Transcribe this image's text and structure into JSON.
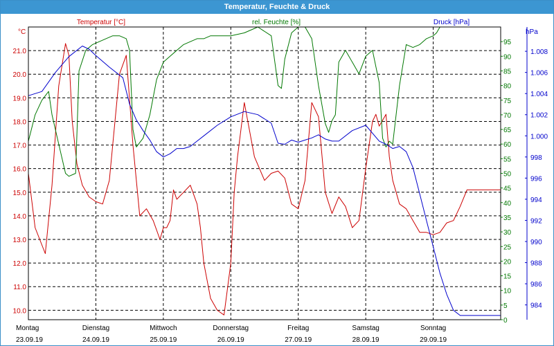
{
  "window": {
    "title": "Temperatur, Feuchte & Druck"
  },
  "colors": {
    "temperature": "#cc0000",
    "humidity": "#007700",
    "pressure": "#0000cc",
    "titlebar": "#3c96d2",
    "grid": "#000000"
  },
  "chart_data": {
    "type": "line",
    "title": "Temperatur, Feuchte & Druck",
    "grid": true,
    "x_days": [
      {
        "day": "Montag",
        "date": "23.09.19"
      },
      {
        "day": "Dienstag",
        "date": "24.09.19"
      },
      {
        "day": "Mittwoch",
        "date": "25.09.19"
      },
      {
        "day": "Donnerstag",
        "date": "26.09.19"
      },
      {
        "day": "Freitag",
        "date": "27.09.19"
      },
      {
        "day": "Samstag",
        "date": "28.09.19"
      },
      {
        "day": "Sonntag",
        "date": "29.09.19"
      }
    ],
    "x_range_days": [
      0,
      7
    ],
    "axes": {
      "temperature": {
        "unit": "°C",
        "min": 9.6,
        "max": 22.0,
        "ticks": [
          "10.0",
          "11.0",
          "12.0",
          "13.0",
          "14.0",
          "15.0",
          "16.0",
          "17.0",
          "18.0",
          "19.0",
          "20.0",
          "21.0"
        ]
      },
      "humidity": {
        "unit": "%",
        "min": 0,
        "max": 100,
        "ticks": [
          "0",
          "5",
          "10",
          "15",
          "20",
          "25",
          "30",
          "35",
          "40",
          "45",
          "50",
          "55",
          "60",
          "65",
          "70",
          "75",
          "80",
          "85",
          "90",
          "95"
        ]
      },
      "pressure": {
        "unit": "hPa",
        "min": 982.6,
        "max": 1010.3,
        "ticks": [
          "984",
          "986",
          "988",
          "990",
          "992",
          "994",
          "996",
          "998",
          "1.000",
          "1.002",
          "1.004",
          "1.006",
          "1.008"
        ]
      }
    },
    "series": [
      {
        "name": "Temperatur [°C]",
        "axis": "temperature",
        "x": [
          0,
          0.1,
          0.25,
          0.35,
          0.45,
          0.55,
          0.6,
          0.65,
          0.72,
          0.8,
          0.9,
          1.0,
          1.1,
          1.2,
          1.35,
          1.45,
          1.55,
          1.65,
          1.75,
          1.85,
          1.95,
          2.0,
          2.05,
          2.1,
          2.15,
          2.2,
          2.3,
          2.4,
          2.5,
          2.55,
          2.6,
          2.7,
          2.8,
          2.9,
          3.0,
          3.05,
          3.1,
          3.2,
          3.35,
          3.5,
          3.6,
          3.7,
          3.8,
          3.9,
          4.0,
          4.1,
          4.2,
          4.3,
          4.4,
          4.5,
          4.6,
          4.7,
          4.8,
          4.9,
          5.0,
          5.1,
          5.15,
          5.2,
          5.3,
          5.35,
          5.4,
          5.5,
          5.6,
          5.7,
          5.8,
          5.9,
          6.0,
          6.1,
          6.2,
          6.3,
          6.4,
          6.5,
          6.6,
          6.7,
          6.8,
          6.9,
          7.0
        ],
        "values": [
          15.8,
          13.5,
          12.4,
          15.3,
          19.5,
          21.3,
          20.8,
          18.0,
          16.2,
          15.3,
          14.8,
          14.6,
          14.5,
          15.5,
          20.0,
          20.8,
          17.0,
          14.0,
          14.3,
          13.8,
          13.0,
          13.5,
          13.5,
          13.8,
          15.1,
          14.7,
          15.0,
          15.3,
          14.5,
          13.5,
          12.0,
          10.5,
          10.0,
          9.8,
          12.0,
          15.0,
          16.5,
          18.8,
          16.5,
          15.5,
          15.8,
          15.9,
          15.6,
          14.5,
          14.3,
          15.5,
          18.8,
          18.2,
          15.0,
          14.1,
          14.8,
          14.4,
          13.5,
          13.8,
          16.0,
          18.0,
          18.3,
          17.8,
          18.3,
          16.5,
          15.5,
          14.5,
          14.3,
          13.8,
          13.3,
          13.3,
          13.2,
          13.3,
          13.7,
          13.8,
          14.4,
          15.1,
          15.1,
          15.1,
          15.1,
          15.1,
          15.1
        ]
      },
      {
        "name": "rel. Feuchte [%]",
        "axis": "humidity",
        "x": [
          0,
          0.1,
          0.2,
          0.3,
          0.35,
          0.45,
          0.55,
          0.6,
          0.7,
          0.75,
          0.85,
          0.95,
          1.05,
          1.15,
          1.25,
          1.35,
          1.45,
          1.5,
          1.55,
          1.6,
          1.7,
          1.8,
          1.9,
          2.0,
          2.1,
          2.2,
          2.3,
          2.4,
          2.5,
          2.6,
          2.7,
          2.8,
          2.9,
          3.0,
          3.2,
          3.4,
          3.6,
          3.7,
          3.75,
          3.8,
          3.9,
          4.0,
          4.1,
          4.2,
          4.3,
          4.4,
          4.45,
          4.5,
          4.55,
          4.6,
          4.7,
          4.8,
          4.9,
          5.0,
          5.1,
          5.2,
          5.25,
          5.3,
          5.35,
          5.4,
          5.5,
          5.6,
          5.7,
          5.8,
          5.9,
          6.0,
          6.05,
          6.1,
          6.2,
          6.3,
          6.4,
          6.5,
          6.6,
          6.7,
          6.8,
          6.9,
          7.0
        ],
        "values": [
          61,
          70,
          75,
          78,
          70,
          60,
          50,
          49,
          50,
          85,
          92,
          94,
          95,
          96,
          97,
          97,
          96,
          92,
          65,
          59,
          62,
          70,
          82,
          88,
          90,
          92,
          94,
          95,
          96,
          96,
          97,
          97,
          97,
          97,
          98,
          100,
          97,
          80,
          79,
          89,
          98,
          100,
          100,
          96,
          80,
          67,
          64,
          68,
          70,
          88,
          92,
          88,
          84,
          90,
          92,
          81,
          62,
          59,
          61,
          60,
          80,
          94,
          93,
          94,
          96,
          97,
          98,
          100,
          100,
          100,
          100,
          100,
          100,
          100,
          100,
          100,
          100
        ]
      },
      {
        "name": "Druck [hPa]",
        "axis": "pressure",
        "x": [
          0,
          0.2,
          0.4,
          0.6,
          0.8,
          0.9,
          1.0,
          1.2,
          1.4,
          1.5,
          1.6,
          1.7,
          1.8,
          1.9,
          2.0,
          2.1,
          2.2,
          2.3,
          2.4,
          2.5,
          2.6,
          2.8,
          3.0,
          3.2,
          3.4,
          3.6,
          3.7,
          3.8,
          3.9,
          4.0,
          4.1,
          4.2,
          4.3,
          4.4,
          4.5,
          4.6,
          4.8,
          5.0,
          5.2,
          5.3,
          5.4,
          5.5,
          5.6,
          5.7,
          5.8,
          5.9,
          6.0,
          6.1,
          6.2,
          6.3,
          6.4,
          6.5,
          6.6,
          6.7,
          6.8,
          6.9,
          7.0
        ],
        "values": [
          1003.8,
          1004.2,
          1006.0,
          1007.5,
          1008.5,
          1008.2,
          1007.6,
          1006.5,
          1005.5,
          1003.0,
          1001.5,
          1000.5,
          999.6,
          998.5,
          998.0,
          998.3,
          998.8,
          998.8,
          999.0,
          999.5,
          1000.0,
          1001.0,
          1001.8,
          1002.3,
          1002.0,
          1001.2,
          999.3,
          999.2,
          999.6,
          999.4,
          999.6,
          999.8,
          1000.1,
          999.7,
          999.5,
          999.5,
          1000.5,
          1001.0,
          999.5,
          999.2,
          998.8,
          999.0,
          998.5,
          997.0,
          994.5,
          992.0,
          989.5,
          987.0,
          985.0,
          983.5,
          983.0,
          983.0,
          983.0,
          983.0,
          983.0,
          983.0,
          983.0
        ]
      }
    ]
  }
}
